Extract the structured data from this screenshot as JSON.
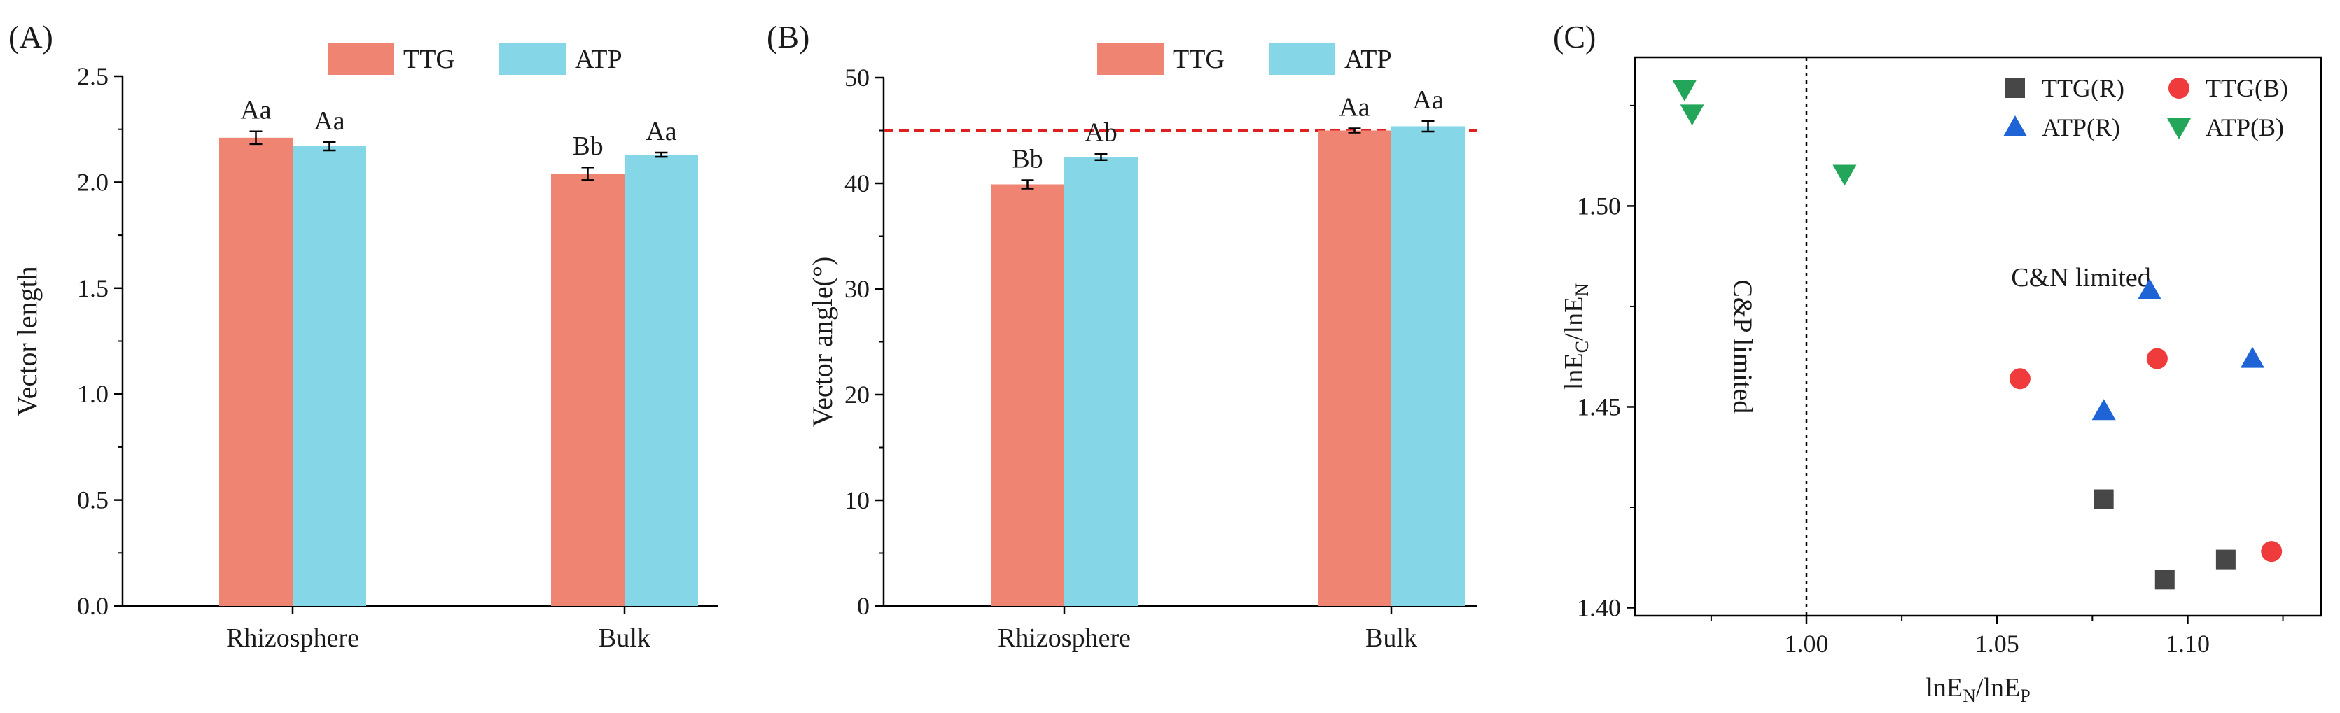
{
  "panels": [
    {
      "id": "A",
      "tag": "(A)"
    },
    {
      "id": "B",
      "tag": "(B)"
    },
    {
      "id": "C",
      "tag": "(C)"
    }
  ],
  "colors": {
    "ttg": "#f08473",
    "atp": "#85d6e6",
    "reference_line": "#e02020",
    "ttg_r": "#474747",
    "ttg_b": "#ef3b3b",
    "atp_r": "#1e64d6",
    "atp_b": "#24a65a"
  },
  "chart_data": [
    {
      "type": "bar",
      "panel": "A",
      "ylabel": "Vector length",
      "xlabel": "",
      "categories": [
        "Rhizosphere",
        "Bulk"
      ],
      "ylim": [
        0,
        2.5
      ],
      "yticks": [
        "0.0",
        "0.5",
        "1.0",
        "1.5",
        "2.0",
        "2.5"
      ],
      "legend_position": "top-center",
      "series": [
        {
          "name": "TTG",
          "values": [
            2.21,
            2.04
          ],
          "errors": [
            0.03,
            0.03
          ],
          "labels": [
            "Aa",
            "Bb"
          ]
        },
        {
          "name": "ATP",
          "values": [
            2.17,
            2.13
          ],
          "errors": [
            0.02,
            0.01
          ],
          "labels": [
            "Aa",
            "Aa"
          ]
        }
      ]
    },
    {
      "type": "bar",
      "panel": "B",
      "ylabel": "Vector angle(°)",
      "xlabel": "",
      "categories": [
        "Rhizosphere",
        "Bulk"
      ],
      "ylim": [
        0,
        50
      ],
      "yticks": [
        "0",
        "10",
        "20",
        "30",
        "40",
        "50"
      ],
      "legend_position": "top-center",
      "reference_line": {
        "y": 45,
        "style": "dashed"
      },
      "series": [
        {
          "name": "TTG",
          "values": [
            39.9,
            45.0
          ],
          "errors": [
            0.4,
            0.2
          ],
          "labels": [
            "Bb",
            "Aa"
          ]
        },
        {
          "name": "ATP",
          "values": [
            42.5,
            45.4
          ],
          "errors": [
            0.3,
            0.5
          ],
          "labels": [
            "Ab",
            "Aa"
          ]
        }
      ]
    },
    {
      "type": "scatter",
      "panel": "C",
      "xlabel": {
        "pre": "lnE",
        "sub1": "N",
        "mid": "/lnE",
        "sub2": "P"
      },
      "ylabel": {
        "pre": "lnE",
        "sub1": "C",
        "mid": "/lnE",
        "sub2": "N"
      },
      "xlim": [
        0.955,
        1.135
      ],
      "ylim": [
        1.398,
        1.537
      ],
      "xticks": [
        {
          "v": 1.0,
          "label": "1.00"
        },
        {
          "v": 1.05,
          "label": "1.05"
        },
        {
          "v": 1.1,
          "label": "1.10"
        }
      ],
      "yticks": [
        {
          "v": 1.4,
          "label": "1.40"
        },
        {
          "v": 1.45,
          "label": "1.45"
        },
        {
          "v": 1.5,
          "label": "1.50"
        }
      ],
      "divider": {
        "x": 1.0,
        "style": "dotted"
      },
      "annotations": [
        {
          "text": "C&P limited",
          "x": 0.981,
          "y": 1.465,
          "rotate": 90
        },
        {
          "text": "C&N limited",
          "x": 1.072,
          "y": 1.48,
          "rotate": 0
        }
      ],
      "legend_position": "top-right",
      "series": [
        {
          "name": "TTG(R)",
          "marker": "square",
          "color": "#474747",
          "points": [
            [
              1.078,
              1.427
            ],
            [
              1.094,
              1.407
            ],
            [
              1.11,
              1.412
            ]
          ]
        },
        {
          "name": "TTG(B)",
          "marker": "circle",
          "color": "#ef3b3b",
          "points": [
            [
              1.056,
              1.457
            ],
            [
              1.092,
              1.462
            ],
            [
              1.122,
              1.414
            ]
          ]
        },
        {
          "name": "ATP(R)",
          "marker": "triangle-up",
          "color": "#1e64d6",
          "points": [
            [
              1.09,
              1.479
            ],
            [
              1.078,
              1.449
            ],
            [
              1.117,
              1.462
            ]
          ]
        },
        {
          "name": "ATP(B)",
          "marker": "triangle-down",
          "color": "#24a65a",
          "points": [
            [
              0.968,
              1.529
            ],
            [
              0.97,
              1.523
            ],
            [
              1.01,
              1.508
            ]
          ]
        }
      ]
    }
  ]
}
